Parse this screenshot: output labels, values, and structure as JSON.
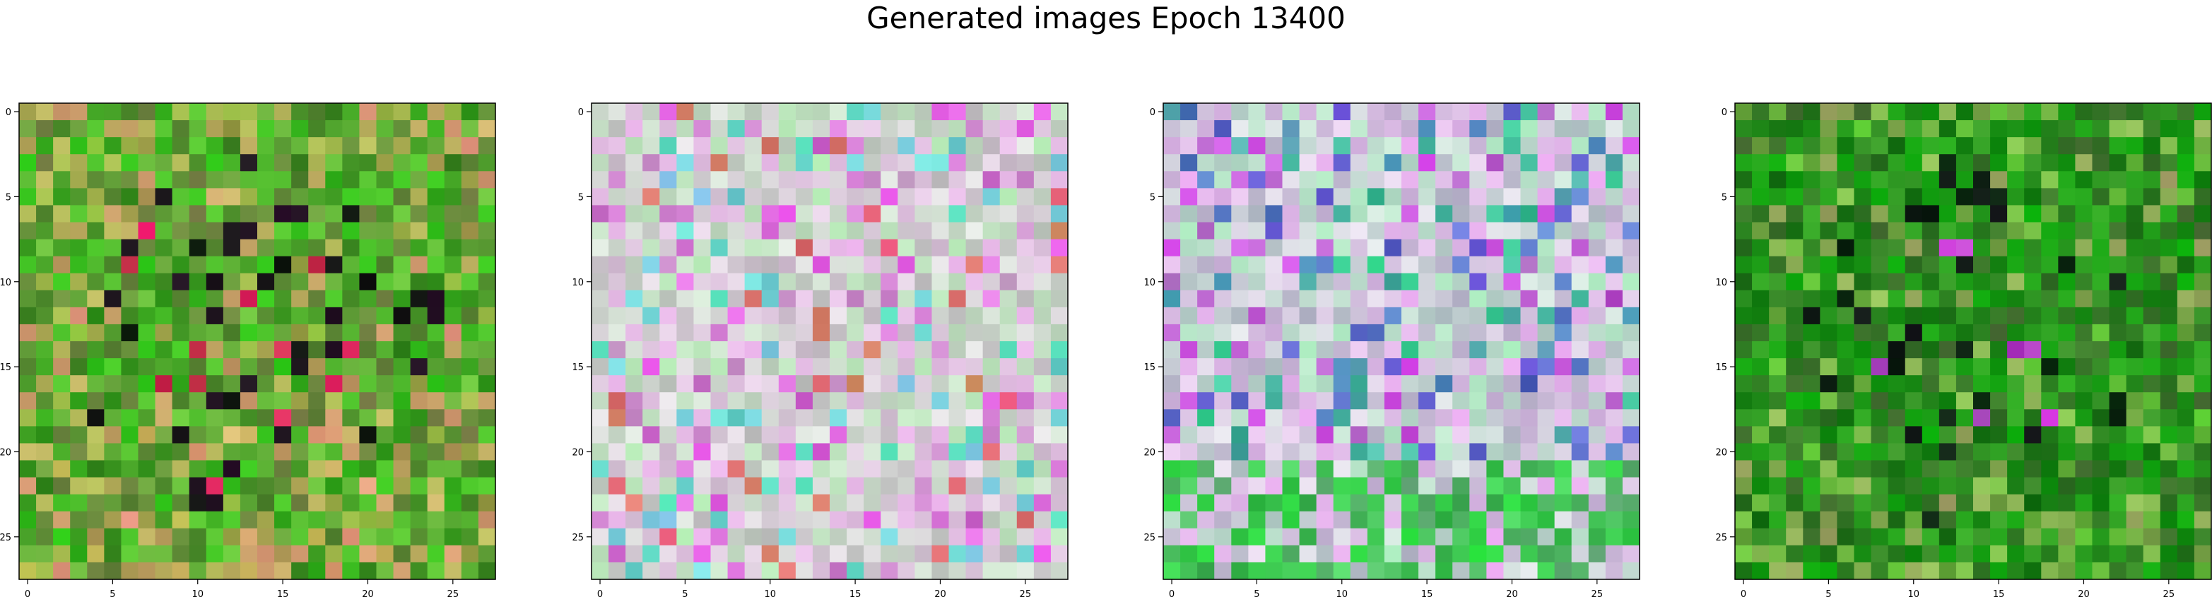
{
  "figure": {
    "title": "Generated images Epoch 13400"
  },
  "chart_data": [
    {
      "type": "heatmap",
      "title": "",
      "grid_size": [
        28,
        28
      ],
      "palette": "green",
      "seed": 11,
      "xticks": [
        0,
        5,
        10,
        15,
        20,
        25
      ],
      "yticks": [
        0,
        5,
        10,
        15,
        20,
        25
      ],
      "xlim": [
        -0.5,
        27.5
      ],
      "ylim": [
        27.5,
        -0.5
      ],
      "grid": false
    },
    {
      "type": "heatmap",
      "title": "",
      "grid_size": [
        28,
        28
      ],
      "palette": "pastel",
      "seed": 23,
      "xticks": [
        0,
        5,
        10,
        15,
        20,
        25
      ],
      "yticks": [
        0,
        5,
        10,
        15,
        20,
        25
      ],
      "xlim": [
        -0.5,
        27.5
      ],
      "ylim": [
        27.5,
        -0.5
      ],
      "grid": false
    },
    {
      "type": "heatmap",
      "title": "",
      "grid_size": [
        28,
        28
      ],
      "palette": "pastel-green",
      "seed": 37,
      "xticks": [
        0,
        5,
        10,
        15,
        20,
        25
      ],
      "yticks": [
        0,
        5,
        10,
        15,
        20,
        25
      ],
      "xlim": [
        -0.5,
        27.5
      ],
      "ylim": [
        27.5,
        -0.5
      ],
      "grid": false
    },
    {
      "type": "heatmap",
      "title": "",
      "grid_size": [
        28,
        28
      ],
      "palette": "darkgreen",
      "seed": 53,
      "xticks": [
        0,
        5,
        10,
        15,
        20,
        25
      ],
      "yticks": [
        0,
        5,
        10,
        15,
        20,
        25
      ],
      "xlim": [
        -0.5,
        27.5
      ],
      "ylim": [
        27.5,
        -0.5
      ],
      "grid": false
    }
  ]
}
